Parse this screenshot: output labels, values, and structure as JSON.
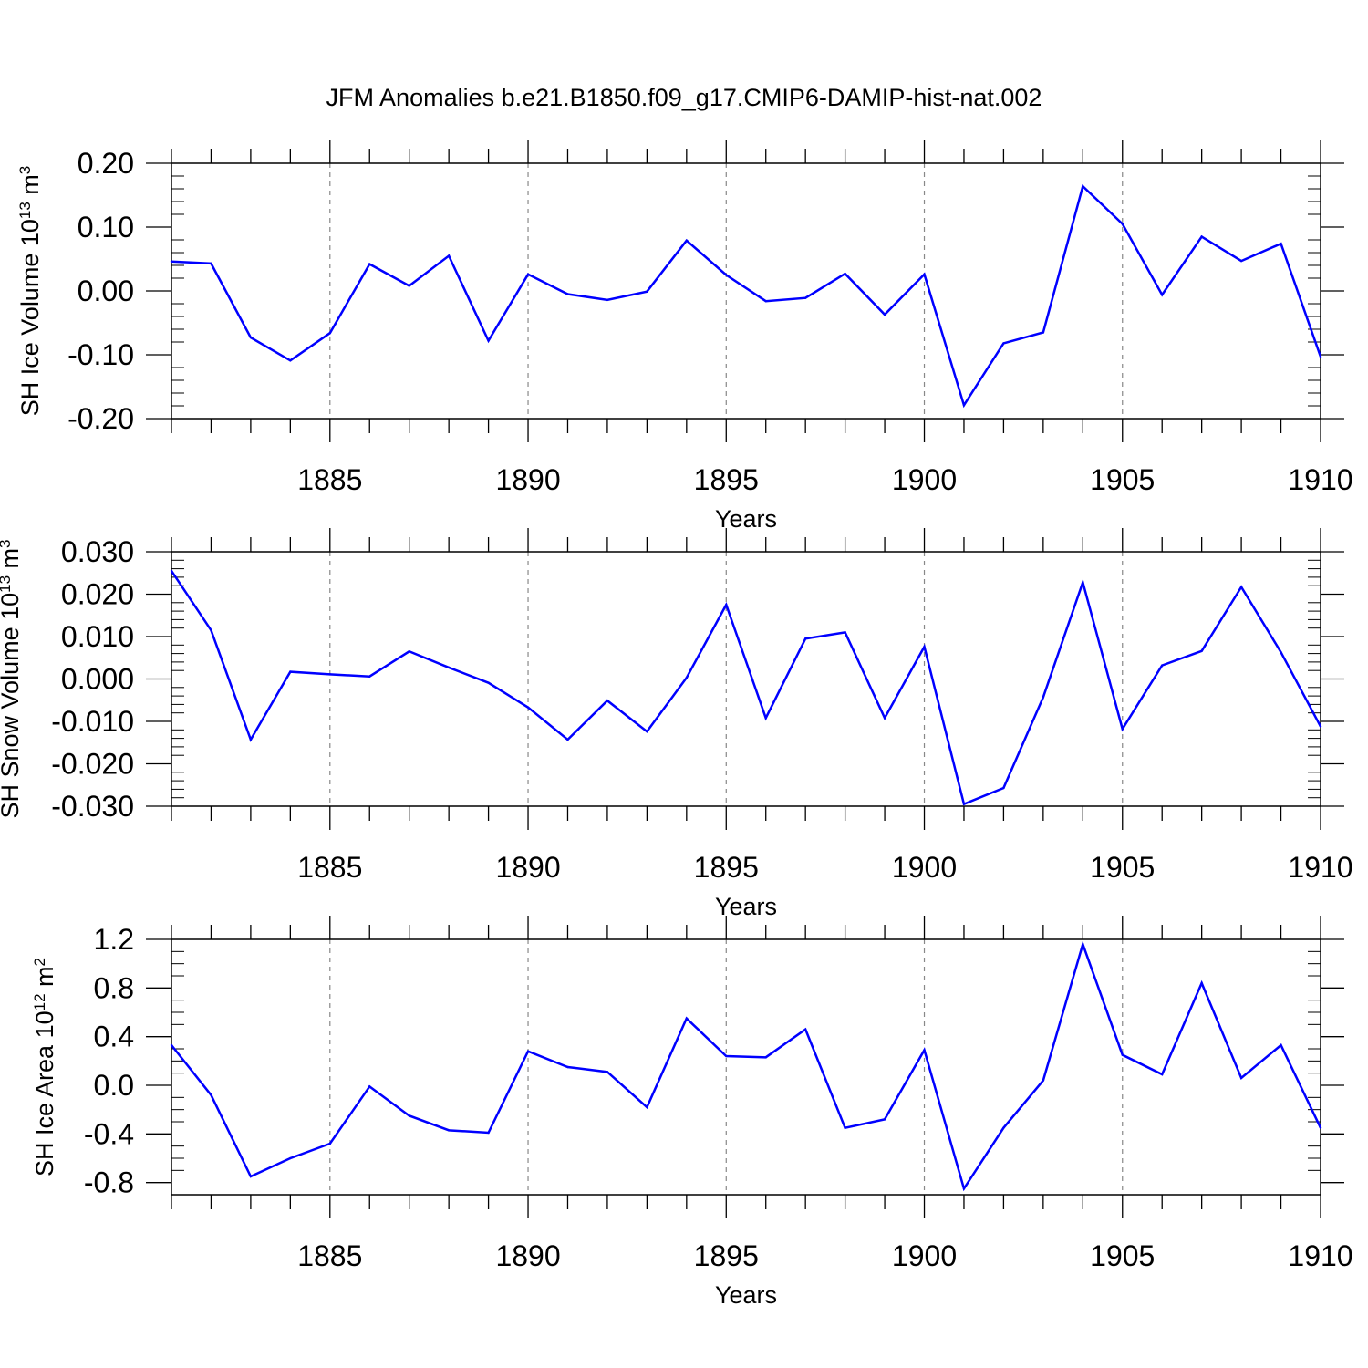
{
  "title": "JFM Anomalies b.e21.B1850.f09_g17.CMIP6-DAMIP-hist-nat.002",
  "line_color": "#0000ff",
  "chart_data": [
    {
      "type": "line",
      "ylabel_main": "SH Ice Volume 10",
      "ylabel_exp": "13",
      "ylabel_unit": " m",
      "ylabel_unit_exp": "3",
      "xlabel": "Years",
      "xlim": [
        1881,
        1910
      ],
      "ylim": [
        -0.2,
        0.2
      ],
      "yticks": [
        -0.2,
        -0.1,
        0.0,
        0.1,
        0.2
      ],
      "ytick_labels": [
        "-0.20",
        "-0.10",
        "0.00",
        "0.10",
        "0.20"
      ],
      "yminor_step": 0.02,
      "xticks": [
        1885,
        1890,
        1895,
        1900,
        1905,
        1910
      ],
      "xtick_labels": [
        "1885",
        "1890",
        "1895",
        "1900",
        "1905",
        "1910"
      ],
      "grid": "dashed vertical at major x ticks",
      "x": [
        1881,
        1882,
        1883,
        1884,
        1885,
        1886,
        1887,
        1888,
        1889,
        1890,
        1891,
        1892,
        1893,
        1894,
        1895,
        1896,
        1897,
        1898,
        1899,
        1900,
        1901,
        1902,
        1903,
        1904,
        1905,
        1906,
        1907,
        1908,
        1909,
        1910
      ],
      "series": [
        {
          "name": "SH Ice Volume",
          "values": [
            0.046,
            0.043,
            -0.073,
            -0.109,
            -0.066,
            0.042,
            0.008,
            0.055,
            -0.078,
            0.026,
            -0.005,
            -0.014,
            -0.001,
            0.079,
            0.025,
            -0.016,
            -0.011,
            0.027,
            -0.037,
            0.026,
            -0.179,
            -0.082,
            -0.065,
            0.164,
            0.105,
            -0.006,
            0.085,
            0.047,
            0.074,
            -0.103
          ]
        }
      ]
    },
    {
      "type": "line",
      "ylabel_main": "SH Snow Volume 10",
      "ylabel_exp": "13",
      "ylabel_unit": " m",
      "ylabel_unit_exp": "3",
      "xlabel": "Years",
      "xlim": [
        1881,
        1910
      ],
      "ylim": [
        -0.03,
        0.03
      ],
      "yticks": [
        -0.03,
        -0.02,
        -0.01,
        0.0,
        0.01,
        0.02,
        0.03
      ],
      "ytick_labels": [
        "-0.030",
        "-0.020",
        "-0.010",
        "0.000",
        "0.010",
        "0.020",
        "0.030"
      ],
      "yminor_step": 0.002,
      "xticks": [
        1885,
        1890,
        1895,
        1900,
        1905,
        1910
      ],
      "xtick_labels": [
        "1885",
        "1890",
        "1895",
        "1900",
        "1905",
        "1910"
      ],
      "grid": "dashed vertical at major x ticks",
      "x": [
        1881,
        1882,
        1883,
        1884,
        1885,
        1886,
        1887,
        1888,
        1889,
        1890,
        1891,
        1892,
        1893,
        1894,
        1895,
        1896,
        1897,
        1898,
        1899,
        1900,
        1901,
        1902,
        1903,
        1904,
        1905,
        1906,
        1907,
        1908,
        1909,
        1910
      ],
      "series": [
        {
          "name": "SH Snow Volume",
          "values": [
            0.0255,
            0.0115,
            -0.0143,
            0.0017,
            0.0011,
            0.0006,
            0.0065,
            0.0027,
            -0.0009,
            -0.0067,
            -0.0143,
            -0.0051,
            -0.0124,
            0.0003,
            0.0175,
            -0.0092,
            0.0095,
            0.011,
            -0.0092,
            0.0076,
            -0.0295,
            -0.0257,
            -0.0043,
            0.0228,
            -0.0118,
            0.0032,
            0.0066,
            0.0217,
            0.0063,
            -0.0112
          ]
        }
      ]
    },
    {
      "type": "line",
      "ylabel_main": "SH Ice Area 10",
      "ylabel_exp": "12",
      "ylabel_unit": " m",
      "ylabel_unit_exp": "2",
      "xlabel": "Years",
      "xlim": [
        1881,
        1910
      ],
      "ylim": [
        -0.9,
        1.2
      ],
      "yticks": [
        -0.8,
        -0.4,
        0.0,
        0.4,
        0.8,
        1.2
      ],
      "ytick_labels": [
        "-0.8",
        "-0.4",
        "0.0",
        "0.4",
        "0.8",
        "1.2"
      ],
      "yminor_step": 0.1,
      "xticks": [
        1885,
        1890,
        1895,
        1900,
        1905,
        1910
      ],
      "xtick_labels": [
        "1885",
        "1890",
        "1895",
        "1900",
        "1905",
        "1910"
      ],
      "grid": "dashed vertical at major x ticks",
      "x": [
        1881,
        1882,
        1883,
        1884,
        1885,
        1886,
        1887,
        1888,
        1889,
        1890,
        1891,
        1892,
        1893,
        1894,
        1895,
        1896,
        1897,
        1898,
        1899,
        1900,
        1901,
        1902,
        1903,
        1904,
        1905,
        1906,
        1907,
        1908,
        1909,
        1910
      ],
      "series": [
        {
          "name": "SH Ice Area",
          "values": [
            0.33,
            -0.08,
            -0.75,
            -0.6,
            -0.48,
            -0.01,
            -0.25,
            -0.37,
            -0.39,
            0.28,
            0.15,
            0.11,
            -0.18,
            0.55,
            0.24,
            0.23,
            0.46,
            -0.35,
            -0.28,
            0.29,
            -0.85,
            -0.35,
            0.04,
            1.16,
            0.25,
            0.09,
            0.84,
            0.06,
            0.33,
            -0.35
          ]
        }
      ]
    }
  ]
}
